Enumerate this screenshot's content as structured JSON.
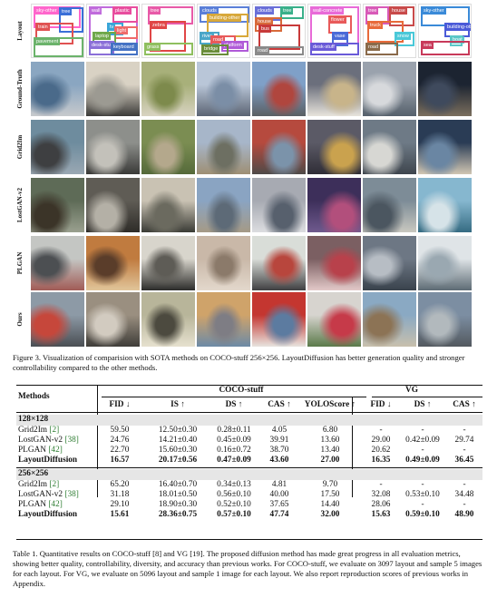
{
  "figure": {
    "row_labels": [
      "Layout",
      "Ground-Truth",
      "Grid2Im",
      "LostGAN-v2",
      "PLGAN",
      "Ours"
    ],
    "layout_tags": [
      [
        "sky-other",
        "tree",
        "train",
        "pavement"
      ],
      [
        "wall",
        "plastic",
        "tv",
        "light",
        "laptop",
        "desk-stuff",
        "keyboard"
      ],
      [
        "tree",
        "zebra",
        "grass"
      ],
      [
        "clouds",
        "building-other",
        "river",
        "road",
        "platform",
        "bridge"
      ],
      [
        "clouds",
        "tree",
        "house",
        "bus",
        "road"
      ],
      [
        "wall-concrete",
        "flower",
        "vase",
        "desk-stuff"
      ],
      [
        "tree",
        "house",
        "truck",
        "snow",
        "road"
      ],
      [
        "sky-other",
        "building-other",
        "boat",
        "sea"
      ]
    ]
  },
  "figure_caption": "Figure 3. Visualization of comparision with SOTA methods on COCO-stuff 256×256. LayoutDiffusion has better generation quality and stronger controllability compared to the other methods.",
  "table": {
    "methods_header": "Methods",
    "coco_header": "COCO-stuff",
    "vg_header": "VG",
    "coco_cols": [
      "FID ↓",
      "IS ↑",
      "DS ↑",
      "CAS ↑",
      "YOLOScore ↑"
    ],
    "vg_cols": [
      "FID ↓",
      "DS ↑",
      "CAS ↑"
    ],
    "sections": [
      {
        "title": "128×128",
        "rows": [
          {
            "method": "Grid2Im",
            "cite": "[2]",
            "cells": [
              "59.50",
              "12.50±0.30",
              "0.28±0.11",
              "4.05",
              "6.80",
              "-",
              "-",
              "-"
            ],
            "bold": false
          },
          {
            "method": "LostGAN-v2",
            "cite": "[38]",
            "cells": [
              "24.76",
              "14.21±0.40",
              "0.45±0.09",
              "39.91",
              "13.60",
              "29.00",
              "0.42±0.09",
              "29.74"
            ],
            "bold": false
          },
          {
            "method": "PLGAN",
            "cite": "[42]",
            "cells": [
              "22.70",
              "15.60±0.30",
              "0.16±0.72",
              "38.70",
              "13.40",
              "20.62",
              "-",
              "-"
            ],
            "bold": false
          },
          {
            "method": "LayoutDiffusion",
            "cite": "",
            "cells": [
              "16.57",
              "20.17±0.56",
              "0.47±0.09",
              "43.60",
              "27.00",
              "16.35",
              "0.49±0.09",
              "36.45"
            ],
            "bold": true
          }
        ]
      },
      {
        "title": "256×256",
        "rows": [
          {
            "method": "Grid2Im",
            "cite": "[2]",
            "cells": [
              "65.20",
              "16.40±0.70",
              "0.34±0.13",
              "4.81",
              "9.70",
              "-",
              "-",
              "-"
            ],
            "bold": false
          },
          {
            "method": "LostGAN-v2",
            "cite": "[38]",
            "cells": [
              "31.18",
              "18.01±0.50",
              "0.56±0.10",
              "40.00",
              "17.50",
              "32.08",
              "0.53±0.10",
              "34.48"
            ],
            "bold": false
          },
          {
            "method": "PLGAN",
            "cite": "[42]",
            "cells": [
              "29.10",
              "18.90±0.30",
              "0.52±0.10",
              "37.65",
              "14.40",
              "28.06",
              "-",
              "-"
            ],
            "bold": false
          },
          {
            "method": "LayoutDiffusion",
            "cite": "",
            "cells": [
              "15.61",
              "28.36±0.75",
              "0.57±0.10",
              "47.74",
              "32.00",
              "15.63",
              "0.59±0.10",
              "48.90"
            ],
            "bold": true
          }
        ]
      }
    ]
  },
  "table_caption": "Table 1. Quantitative results on COCO-stuff [8] and VG [19]. The proposed diffusion method has made great progress in all evaluation metrics, showing better quality, controllability, diversity, and accuracy than previous works. For COCO-stuff, we evaluate on 3097 layout and sample 5 images for each layout. For VG, we evaluate on 5096 layout and sample 1 image for each layout. We also report reproduction scores of previous works in Appendix."
}
